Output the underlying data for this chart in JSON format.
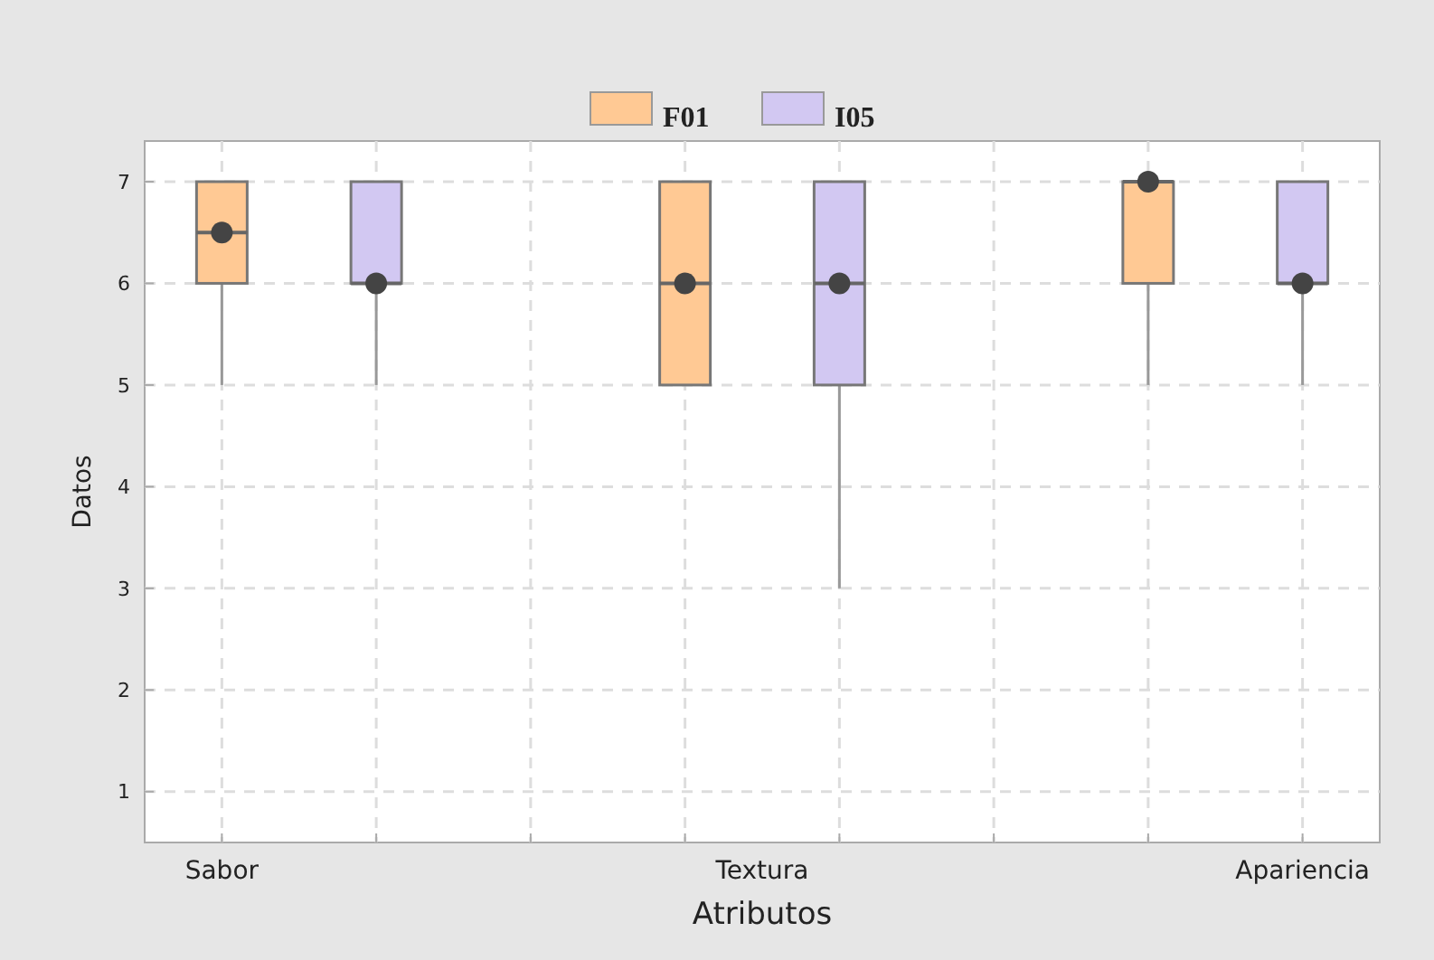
{
  "chart_data": {
    "type": "box",
    "xlabel": "Atributos",
    "ylabel": "Datos",
    "categories": [
      "Sabor",
      "Textura",
      "Apariencia"
    ],
    "series": [
      {
        "name": "F01",
        "color": "#ffc994",
        "boxes": [
          {
            "low": 5,
            "q1": 6,
            "median": 6.5,
            "q3": 7,
            "high": 7,
            "mean": 6.5
          },
          {
            "low": 5,
            "q1": 5,
            "median": 6,
            "q3": 7,
            "high": 7,
            "mean": 6
          },
          {
            "low": 5,
            "q1": 6,
            "median": 7,
            "q3": 7,
            "high": 7,
            "mean": 7
          }
        ]
      },
      {
        "name": "I05",
        "color": "#d2c8f2",
        "boxes": [
          {
            "low": 5,
            "q1": 6,
            "median": 6,
            "q3": 7,
            "high": 7,
            "mean": 6
          },
          {
            "low": 3,
            "q1": 5,
            "median": 6,
            "q3": 7,
            "high": 7,
            "mean": 6
          },
          {
            "low": 5,
            "q1": 6,
            "median": 6,
            "q3": 7,
            "high": 7,
            "mean": 6
          }
        ]
      }
    ],
    "ylim": [
      0.5,
      7.4
    ],
    "yticks": [
      1,
      2,
      3,
      4,
      5,
      6,
      7
    ],
    "grid": true,
    "legend": "top"
  }
}
